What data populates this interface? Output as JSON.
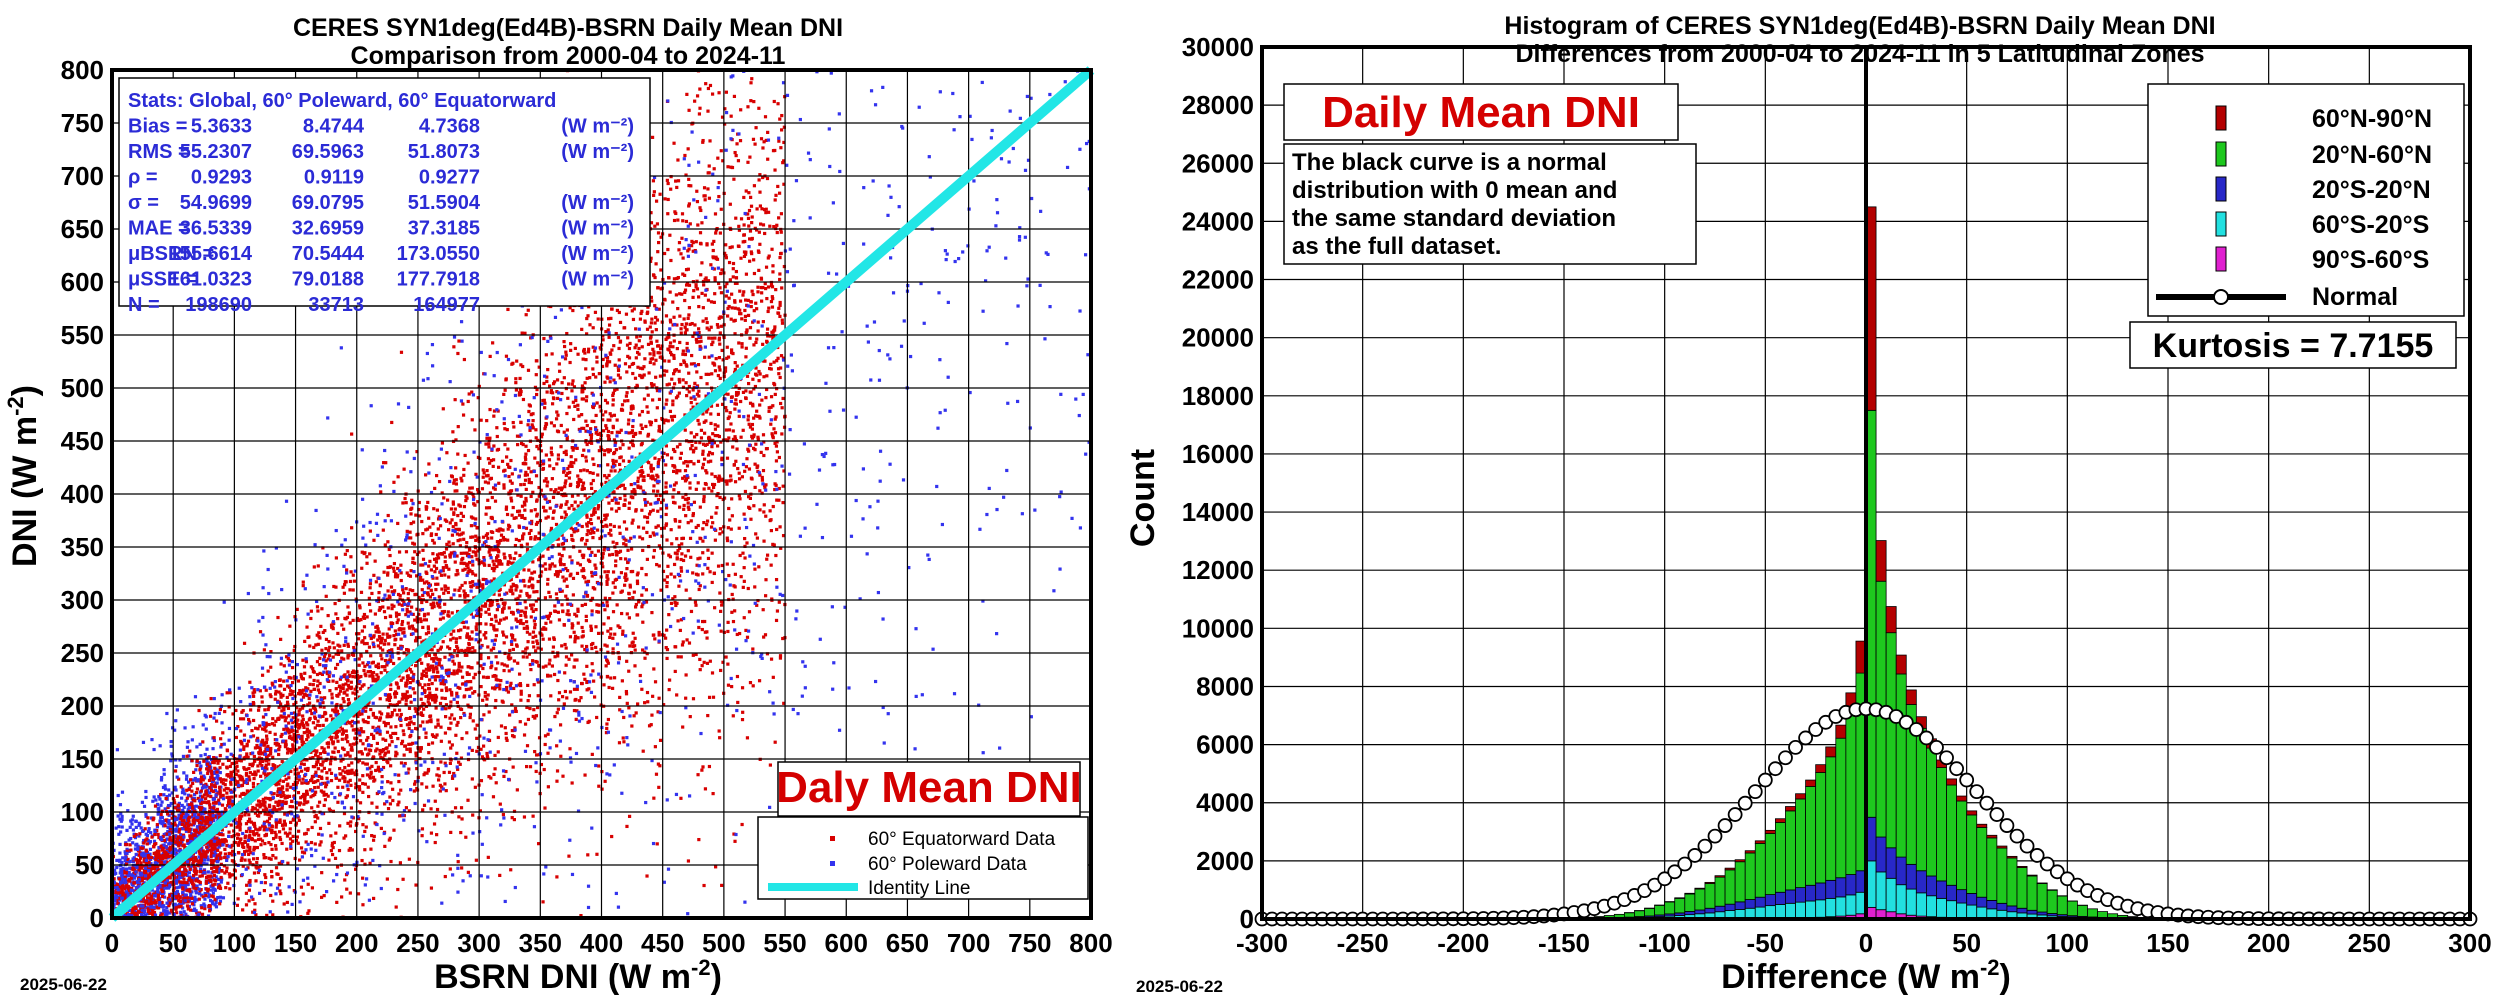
{
  "left": {
    "title_line1": "CERES SYN1deg(Ed4B)-BSRN Daily Mean DNI",
    "title_line2": "Comparison from 2000-04 to 2024-11",
    "date": "2025-06-22",
    "badge": "Daly Mean DNI",
    "stats": [
      {
        "label": "Stats: Global, 60° Poleward, 60° Equatorward",
        "v1": "",
        "v2": "",
        "v3": "",
        "unit": ""
      },
      {
        "label": "Bias =",
        "v1": "5.3633",
        "v2": "8.4744",
        "v3": "4.7368",
        "unit": "(W m⁻²)"
      },
      {
        "label": "RMS =",
        "v1": "55.2307",
        "v2": "69.5963",
        "v3": "51.8073",
        "unit": "(W m⁻²)"
      },
      {
        "label": "ρ =",
        "v1": "0.9293",
        "v2": "0.9119",
        "v3": "0.9277",
        "unit": ""
      },
      {
        "label": "σ =",
        "v1": "54.9699",
        "v2": "69.0795",
        "v3": "51.5904",
        "unit": "(W m⁻²)"
      },
      {
        "label": "MAE =",
        "v1": "36.5339",
        "v2": "32.6959",
        "v3": "37.3185",
        "unit": "(W m⁻²)"
      },
      {
        "label": "μBSRN =",
        "v1": "155.6614",
        "v2": "70.5444",
        "v3": "173.0550",
        "unit": "(W m⁻²)"
      },
      {
        "label": "μSSE =",
        "v1": "161.0323",
        "v2": "79.0188",
        "v3": "177.7918",
        "unit": "(W m⁻²)"
      },
      {
        "label": "N =",
        "v1": "198690",
        "v2": "33713",
        "v3": "164977",
        "unit": ""
      }
    ],
    "legend": [
      "60° Equatorward Data",
      "60° Poleward Data",
      "Identity Line"
    ]
  },
  "right": {
    "title_line1": "Histogram of CERES SYN1deg(Ed4B)-BSRN Daily Mean DNI",
    "title_line2": "Differences from 2000-04 to 2024-11 in 5 Latitudinal Zones",
    "date": "2025-06-22",
    "badge": "Daily Mean DNI",
    "note": [
      "The black curve is a normal",
      "distribution with 0 mean and",
      "the same standard deviation",
      "as the full dataset."
    ],
    "kurtosis": "Kurtosis = 7.7155",
    "legend": [
      "60°N-90°N",
      "20°N-60°N",
      "20°S-20°N",
      "60°S-20°S",
      "90°S-60°S",
      "Normal"
    ]
  },
  "colors": {
    "equatorward": "#d80000",
    "poleward": "#3333ee",
    "identity": "#22e6e6",
    "zone_60N_90N": "#b30000",
    "zone_20N_60N": "#1ec81e",
    "zone_20S_20N": "#2828c8",
    "zone_60S_20S": "#22e0e0",
    "zone_90S_60S": "#e020d0"
  },
  "chart_data": [
    {
      "type": "scatter",
      "title": "CERES SYN1deg(Ed4B)-BSRN Daily Mean DNI",
      "subtitle": "Comparison from 2000-04 to 2024-11",
      "xlabel": "BSRN DNI (W m-2)",
      "ylabel": "DNI (W m-2)",
      "xlim": [
        0,
        800
      ],
      "ylim": [
        0,
        800
      ],
      "xticks": [
        0,
        50,
        100,
        150,
        200,
        250,
        300,
        350,
        400,
        450,
        500,
        550,
        600,
        650,
        700,
        750,
        800
      ],
      "yticks": [
        0,
        50,
        100,
        150,
        200,
        250,
        300,
        350,
        400,
        450,
        500,
        550,
        600,
        650,
        700,
        750,
        800
      ],
      "grid": true,
      "legend_position": "bottom-right",
      "series": [
        {
          "name": "60° Equatorward Data",
          "x_range": [
            0,
            550
          ],
          "trend_slope": 1.0,
          "approx_sd": 51.6,
          "count": 164977
        },
        {
          "name": "60° Poleward Data",
          "x_range": [
            0,
            800
          ],
          "trend_slope": 1.0,
          "approx_sd": 69.1,
          "count": 33713
        },
        {
          "name": "Identity Line",
          "x": [
            0,
            800
          ],
          "y": [
            0,
            800
          ]
        }
      ]
    },
    {
      "type": "bar",
      "stacked": true,
      "title": "Histogram of CERES SYN1deg(Ed4B)-BSRN Daily Mean DNI",
      "subtitle": "Differences from 2000-04 to 2024-11 in 5 Latitudinal Zones",
      "xlabel": "Difference (W m-2)",
      "ylabel": "Count",
      "xlim": [
        -300,
        300
      ],
      "ylim": [
        0,
        30000
      ],
      "xticks": [
        -300,
        -250,
        -200,
        -150,
        -100,
        -50,
        0,
        50,
        100,
        150,
        200,
        250,
        300
      ],
      "yticks": [
        0,
        2000,
        4000,
        6000,
        8000,
        10000,
        12000,
        14000,
        16000,
        18000,
        20000,
        22000,
        24000,
        26000,
        28000,
        30000
      ],
      "grid": true,
      "legend_position": "top-right",
      "bin_width": 5,
      "categories": [
        -150,
        -145,
        -140,
        -135,
        -130,
        -125,
        -120,
        -115,
        -110,
        -105,
        -100,
        -95,
        -90,
        -85,
        -80,
        -75,
        -70,
        -65,
        -60,
        -55,
        -50,
        -45,
        -40,
        -35,
        -30,
        -25,
        -20,
        -15,
        -10,
        -5,
        0,
        5,
        10,
        15,
        20,
        25,
        30,
        35,
        40,
        45,
        50,
        55,
        60,
        65,
        70,
        75,
        80,
        85,
        90,
        95,
        100,
        105,
        110,
        115,
        120,
        125,
        130,
        135,
        140,
        145
      ],
      "series": [
        {
          "name": "90°S-60°S",
          "values": [
            0,
            0,
            0,
            0,
            0,
            0,
            0,
            0,
            0,
            0,
            0,
            0,
            0,
            0,
            0,
            0,
            0,
            0,
            0,
            0,
            10,
            20,
            30,
            40,
            50,
            60,
            80,
            100,
            130,
            180,
            400,
            320,
            250,
            180,
            130,
            100,
            80,
            60,
            50,
            40,
            30,
            20,
            10,
            10,
            0,
            0,
            0,
            0,
            0,
            0,
            0,
            0,
            0,
            0,
            0,
            0,
            0,
            0,
            0,
            0
          ]
        },
        {
          "name": "60°S-20°S",
          "values": [
            10,
            10,
            15,
            20,
            25,
            30,
            40,
            50,
            60,
            80,
            100,
            120,
            150,
            180,
            210,
            250,
            290,
            330,
            370,
            410,
            450,
            480,
            510,
            540,
            570,
            600,
            630,
            660,
            700,
            740,
            1600,
            1300,
            1150,
            1000,
            900,
            800,
            720,
            650,
            580,
            510,
            450,
            390,
            340,
            290,
            250,
            210,
            170,
            140,
            110,
            90,
            70,
            55,
            45,
            35,
            25,
            20,
            15,
            10,
            10,
            5
          ]
        },
        {
          "name": "20°S-20°N",
          "values": [
            5,
            5,
            10,
            10,
            15,
            20,
            25,
            35,
            45,
            60,
            75,
            90,
            110,
            130,
            160,
            190,
            220,
            260,
            300,
            340,
            380,
            420,
            460,
            500,
            540,
            580,
            620,
            660,
            700,
            740,
            1500,
            1200,
            1050,
            950,
            850,
            760,
            680,
            600,
            530,
            460,
            400,
            340,
            290,
            240,
            200,
            160,
            130,
            100,
            80,
            60,
            45,
            35,
            25,
            20,
            15,
            10,
            8,
            5,
            3,
            2
          ]
        },
        {
          "name": "20°N-60°N",
          "values": [
            15,
            25,
            35,
            55,
            80,
            110,
            150,
            200,
            260,
            330,
            410,
            500,
            600,
            720,
            850,
            1000,
            1180,
            1380,
            1600,
            1850,
            2100,
            2400,
            2720,
            3050,
            3400,
            3800,
            4250,
            4800,
            5600,
            6800,
            14000,
            8800,
            7400,
            6300,
            5500,
            4900,
            4400,
            3900,
            3450,
            3050,
            2700,
            2400,
            2150,
            1900,
            1650,
            1400,
            1180,
            980,
            800,
            640,
            500,
            380,
            280,
            200,
            140,
            95,
            60,
            35,
            20,
            10
          ]
        },
        {
          "name": "60°N-90°N",
          "values": [
            0,
            0,
            0,
            0,
            0,
            0,
            5,
            5,
            10,
            10,
            15,
            20,
            25,
            30,
            40,
            50,
            60,
            70,
            80,
            90,
            110,
            130,
            150,
            180,
            220,
            270,
            340,
            450,
            650,
            1100,
            7000,
            1400,
            900,
            650,
            500,
            400,
            320,
            260,
            210,
            170,
            140,
            110,
            90,
            70,
            55,
            40,
            30,
            20,
            15,
            10,
            5,
            5,
            0,
            0,
            0,
            0,
            0,
            0,
            0,
            0
          ]
        },
        {
          "name": "Normal",
          "mean": 0,
          "sd": 54.9699,
          "peak": 7230,
          "x_step": 5
        }
      ]
    }
  ]
}
